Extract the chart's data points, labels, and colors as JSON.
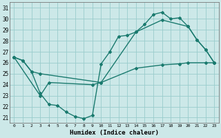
{
  "xlabel": "Humidex (Indice chaleur)",
  "xlim": [
    -0.5,
    23.5
  ],
  "ylim": [
    20.5,
    31.5
  ],
  "yticks": [
    21,
    22,
    23,
    24,
    25,
    26,
    27,
    28,
    29,
    30,
    31
  ],
  "xticks": [
    0,
    1,
    2,
    3,
    4,
    5,
    6,
    7,
    8,
    9,
    10,
    11,
    12,
    13,
    14,
    15,
    16,
    17,
    18,
    19,
    20,
    21,
    22,
    23
  ],
  "bg_color": "#cce8e8",
  "line_color": "#1a7a6e",
  "grid_color": "#99cccc",
  "curve1_x": [
    0,
    1,
    2,
    3,
    4,
    5,
    6,
    7,
    8,
    9,
    10,
    11,
    12,
    13,
    14,
    15,
    16,
    17,
    18,
    19,
    20,
    21,
    22,
    23
  ],
  "curve1_y": [
    26.5,
    26.2,
    25.2,
    23.2,
    22.2,
    22.1,
    21.5,
    21.1,
    20.9,
    21.2,
    25.9,
    27.0,
    28.4,
    28.5,
    28.8,
    29.5,
    30.4,
    30.6,
    30.0,
    30.1,
    29.3,
    28.1,
    27.2,
    26.0
  ],
  "curve2_x": [
    0,
    1,
    2,
    3,
    10,
    14,
    17,
    19,
    20,
    22,
    23
  ],
  "curve2_y": [
    26.5,
    26.2,
    25.2,
    25.0,
    24.2,
    25.5,
    25.8,
    25.9,
    26.0,
    26.0,
    26.0
  ],
  "curve3_x": [
    0,
    3,
    4,
    9,
    10,
    14,
    17,
    20,
    21,
    22,
    23
  ],
  "curve3_y": [
    26.5,
    23.0,
    24.2,
    24.0,
    24.2,
    28.8,
    29.9,
    29.3,
    28.1,
    27.2,
    26.0
  ]
}
